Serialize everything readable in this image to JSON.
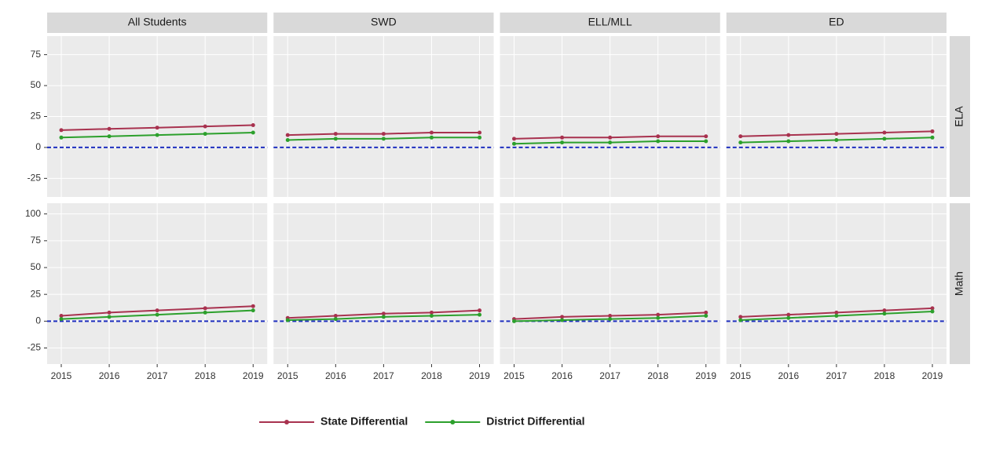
{
  "chart_data": {
    "type": "line",
    "x": [
      2015,
      2016,
      2017,
      2018,
      2019
    ],
    "columns": [
      "All Students",
      "SWD",
      "ELL/MLL",
      "ED"
    ],
    "series": [
      {
        "name": "State Differential",
        "color": "#a8324f"
      },
      {
        "name": "District Differential",
        "color": "#2ca02c"
      }
    ],
    "zero_line_color": "#1f2fbf",
    "grid": true,
    "legend": "bottom",
    "rows": [
      {
        "label": "ELA",
        "ylim": [
          -40,
          90
        ],
        "yticks": [
          -25,
          0,
          25,
          50,
          75
        ],
        "values": [
          [
            [
              14,
              15,
              16,
              17,
              18
            ],
            [
              8,
              9,
              10,
              11,
              12
            ]
          ],
          [
            [
              10,
              11,
              11,
              12,
              12
            ],
            [
              6,
              7,
              7,
              8,
              8
            ]
          ],
          [
            [
              7,
              8,
              8,
              9,
              9
            ],
            [
              3,
              4,
              4,
              5,
              5
            ]
          ],
          [
            [
              9,
              10,
              11,
              12,
              13
            ],
            [
              4,
              5,
              6,
              7,
              8
            ]
          ]
        ]
      },
      {
        "label": "Math",
        "ylim": [
          -40,
          110
        ],
        "yticks": [
          -25,
          0,
          25,
          50,
          75,
          100
        ],
        "values": [
          [
            [
              5,
              8,
              10,
              12,
              14
            ],
            [
              2,
              4,
              6,
              8,
              10
            ]
          ],
          [
            [
              3,
              5,
              7,
              8,
              10
            ],
            [
              1,
              2,
              4,
              5,
              6
            ]
          ],
          [
            [
              2,
              4,
              5,
              6,
              8
            ],
            [
              0,
              1,
              2,
              3,
              5
            ]
          ],
          [
            [
              4,
              6,
              8,
              10,
              12
            ],
            [
              1,
              3,
              5,
              7,
              9
            ]
          ]
        ]
      }
    ]
  }
}
